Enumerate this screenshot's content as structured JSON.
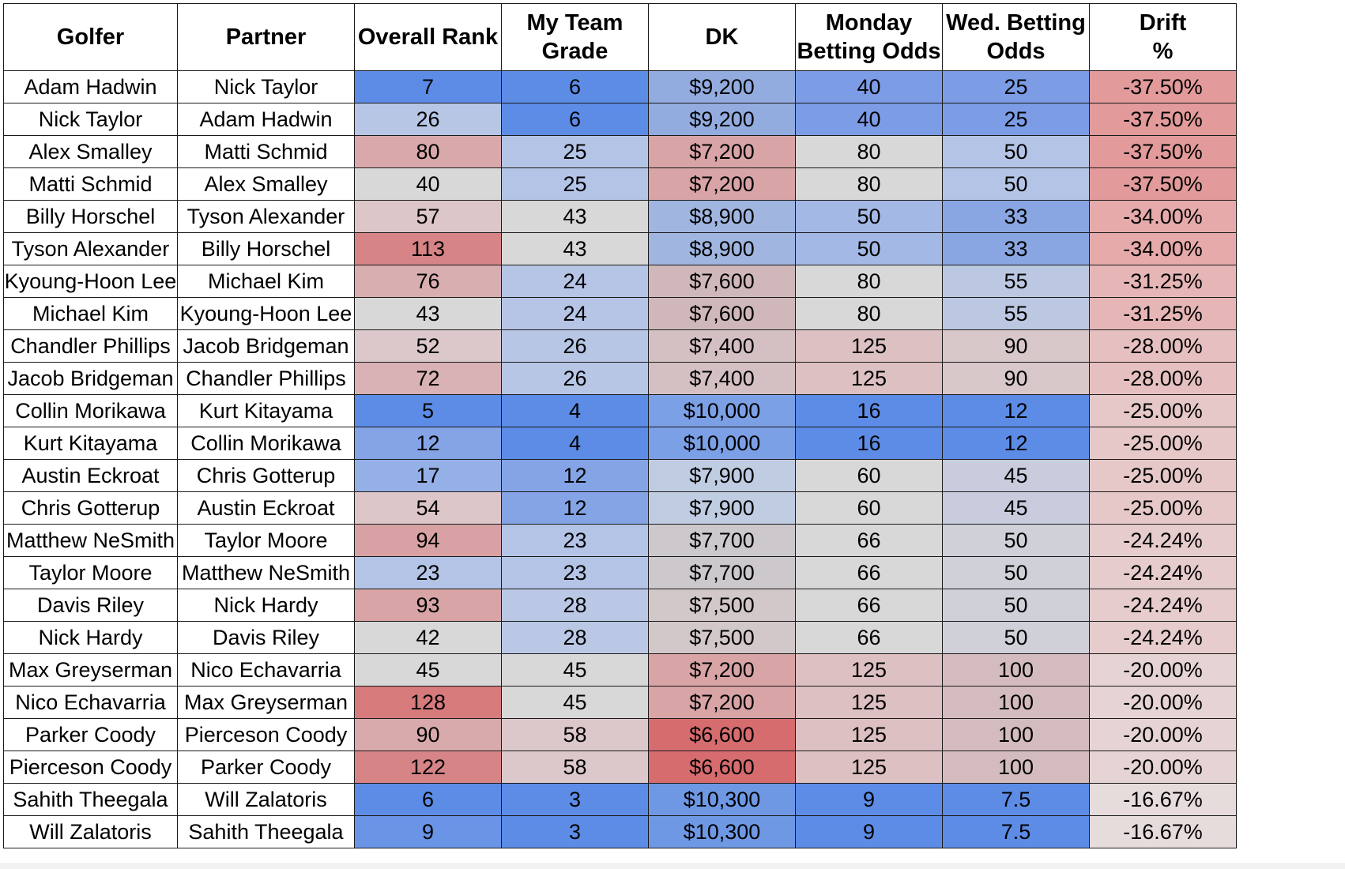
{
  "table": {
    "headers": [
      "Golfer",
      "Partner",
      "Overall Rank",
      "My Team\nGrade",
      "DK",
      "Monday\nBetting Odds",
      "Wed. Betting\nOdds",
      "Drift\n%"
    ],
    "rows": [
      [
        "Adam Hadwin",
        "Nick Taylor",
        "7",
        "6",
        "$9,200",
        "40",
        "25",
        "-37.50%"
      ],
      [
        "Nick Taylor",
        "Adam Hadwin",
        "26",
        "6",
        "$9,200",
        "40",
        "25",
        "-37.50%"
      ],
      [
        "Alex Smalley",
        "Matti Schmid",
        "80",
        "25",
        "$7,200",
        "80",
        "50",
        "-37.50%"
      ],
      [
        "Matti Schmid",
        "Alex Smalley",
        "40",
        "25",
        "$7,200",
        "80",
        "50",
        "-37.50%"
      ],
      [
        "Billy Horschel",
        "Tyson Alexander",
        "57",
        "43",
        "$8,900",
        "50",
        "33",
        "-34.00%"
      ],
      [
        "Tyson Alexander",
        "Billy Horschel",
        "113",
        "43",
        "$8,900",
        "50",
        "33",
        "-34.00%"
      ],
      [
        "Kyoung-Hoon Lee",
        "Michael Kim",
        "76",
        "24",
        "$7,600",
        "80",
        "55",
        "-31.25%"
      ],
      [
        "Michael Kim",
        "Kyoung-Hoon Lee",
        "43",
        "24",
        "$7,600",
        "80",
        "55",
        "-31.25%"
      ],
      [
        "Chandler Phillips",
        "Jacob Bridgeman",
        "52",
        "26",
        "$7,400",
        "125",
        "90",
        "-28.00%"
      ],
      [
        "Jacob Bridgeman",
        "Chandler Phillips",
        "72",
        "26",
        "$7,400",
        "125",
        "90",
        "-28.00%"
      ],
      [
        "Collin Morikawa",
        "Kurt Kitayama",
        "5",
        "4",
        "$10,000",
        "16",
        "12",
        "-25.00%"
      ],
      [
        "Kurt Kitayama",
        "Collin Morikawa",
        "12",
        "4",
        "$10,000",
        "16",
        "12",
        "-25.00%"
      ],
      [
        "Austin Eckroat",
        "Chris Gotterup",
        "17",
        "12",
        "$7,900",
        "60",
        "45",
        "-25.00%"
      ],
      [
        "Chris Gotterup",
        "Austin Eckroat",
        "54",
        "12",
        "$7,900",
        "60",
        "45",
        "-25.00%"
      ],
      [
        "Matthew NeSmith",
        "Taylor Moore",
        "94",
        "23",
        "$7,700",
        "66",
        "50",
        "-24.24%"
      ],
      [
        "Taylor Moore",
        "Matthew NeSmith",
        "23",
        "23",
        "$7,700",
        "66",
        "50",
        "-24.24%"
      ],
      [
        "Davis Riley",
        "Nick Hardy",
        "93",
        "28",
        "$7,500",
        "66",
        "50",
        "-24.24%"
      ],
      [
        "Nick Hardy",
        "Davis Riley",
        "42",
        "28",
        "$7,500",
        "66",
        "50",
        "-24.24%"
      ],
      [
        "Max Greyserman",
        "Nico Echavarria",
        "45",
        "45",
        "$7,200",
        "125",
        "100",
        "-20.00%"
      ],
      [
        "Nico Echavarria",
        "Max Greyserman",
        "128",
        "45",
        "$7,200",
        "125",
        "100",
        "-20.00%"
      ],
      [
        "Parker Coody",
        "Pierceson Coody",
        "90",
        "58",
        "$6,600",
        "125",
        "100",
        "-20.00%"
      ],
      [
        "Pierceson Coody",
        "Parker Coody",
        "122",
        "58",
        "$6,600",
        "125",
        "100",
        "-20.00%"
      ],
      [
        "Sahith Theegala",
        "Will Zalatoris",
        "6",
        "3",
        "$10,300",
        "9",
        "7.5",
        "-16.67%"
      ],
      [
        "Will Zalatoris",
        "Sahith Theegala",
        "9",
        "3",
        "$10,300",
        "9",
        "7.5",
        "-16.67%"
      ]
    ],
    "fill_colors": [
      [
        "#ffffff",
        "#ffffff",
        "#5c8ce6",
        "#5c8ce6",
        "#93ace0",
        "#7c9ce6",
        "#7c9ce6",
        "#e29a9a"
      ],
      [
        "#ffffff",
        "#ffffff",
        "#b8c6e6",
        "#5c8ce6",
        "#93ace0",
        "#7c9ce6",
        "#7c9ce6",
        "#e29a9a"
      ],
      [
        "#ffffff",
        "#ffffff",
        "#d8a8aa",
        "#b4c4e6",
        "#d8a4a6",
        "#d8d8d8",
        "#b4c4e6",
        "#e29a9a"
      ],
      [
        "#ffffff",
        "#ffffff",
        "#d8d8d8",
        "#b4c4e6",
        "#d8a4a6",
        "#d8d8d8",
        "#b4c4e6",
        "#e29a9a"
      ],
      [
        "#ffffff",
        "#ffffff",
        "#dcc6c8",
        "#d8d8d8",
        "#a0b6e0",
        "#a4b8e6",
        "#8aa6e2",
        "#e6aaaa"
      ],
      [
        "#ffffff",
        "#ffffff",
        "#d68486",
        "#d8d8d8",
        "#a0b6e0",
        "#a4b8e6",
        "#8aa6e2",
        "#e6aaaa"
      ],
      [
        "#ffffff",
        "#ffffff",
        "#d8aeb0",
        "#b6c4e6",
        "#d0b8ba",
        "#d8d8d8",
        "#bcc8e2",
        "#e6b6b6"
      ],
      [
        "#ffffff",
        "#ffffff",
        "#d8d8d8",
        "#b6c4e6",
        "#d0b8ba",
        "#d8d8d8",
        "#bcc8e2",
        "#e6b6b6"
      ],
      [
        "#ffffff",
        "#ffffff",
        "#dcc8ca",
        "#b8c6e6",
        "#d4c0c2",
        "#dcc0c2",
        "#d8c8ca",
        "#e6c0c0"
      ],
      [
        "#ffffff",
        "#ffffff",
        "#d8b2b4",
        "#b8c6e6",
        "#d4c0c2",
        "#dcc0c2",
        "#d8c8ca",
        "#e6c0c0"
      ],
      [
        "#ffffff",
        "#ffffff",
        "#5c8ce6",
        "#5c8ce6",
        "#7ca0e6",
        "#5c8ce6",
        "#5c8ce6",
        "#e6c8c8"
      ],
      [
        "#ffffff",
        "#ffffff",
        "#84a4e6",
        "#5c8ce6",
        "#7ca0e6",
        "#5c8ce6",
        "#5c8ce6",
        "#e6c8c8"
      ],
      [
        "#ffffff",
        "#ffffff",
        "#94b0e6",
        "#84a4e6",
        "#c0cce2",
        "#d8d8d8",
        "#c8ccdc",
        "#e6c8c8"
      ],
      [
        "#ffffff",
        "#ffffff",
        "#dcc6c8",
        "#84a4e6",
        "#c0cce2",
        "#d8d8d8",
        "#c8ccdc",
        "#e6c8c8"
      ],
      [
        "#ffffff",
        "#ffffff",
        "#d8a2a4",
        "#b4c4e6",
        "#ccc8cc",
        "#d8d8d8",
        "#d0d0d8",
        "#e6cccc"
      ],
      [
        "#ffffff",
        "#ffffff",
        "#b4c4e6",
        "#b4c4e6",
        "#ccc8cc",
        "#d8d8d8",
        "#d0d0d8",
        "#e6cccc"
      ],
      [
        "#ffffff",
        "#ffffff",
        "#d8a4a6",
        "#bac8e6",
        "#d2c8ca",
        "#d8d8d8",
        "#d0d0d8",
        "#e6cccc"
      ],
      [
        "#ffffff",
        "#ffffff",
        "#d8d8d8",
        "#bac8e6",
        "#d2c8ca",
        "#d8d8d8",
        "#d0d0d8",
        "#e6cccc"
      ],
      [
        "#ffffff",
        "#ffffff",
        "#d8d8d8",
        "#d8d8d8",
        "#d8a4a6",
        "#dcc0c2",
        "#d4bcbe",
        "#e6d4d4"
      ],
      [
        "#ffffff",
        "#ffffff",
        "#d67a7c",
        "#d8d8d8",
        "#d8a4a6",
        "#dcc0c2",
        "#d4bcbe",
        "#e6d4d4"
      ],
      [
        "#ffffff",
        "#ffffff",
        "#d8aaac",
        "#dcc8ca",
        "#d66c6e",
        "#dcc0c2",
        "#d4bcbe",
        "#e6d4d4"
      ],
      [
        "#ffffff",
        "#ffffff",
        "#d68486",
        "#dcc8ca",
        "#d66c6e",
        "#dcc0c2",
        "#d4bcbe",
        "#e6d4d4"
      ],
      [
        "#ffffff",
        "#ffffff",
        "#5c8ce6",
        "#5c8ce6",
        "#6e98e4",
        "#5c8ce6",
        "#5c8ce6",
        "#e6dcdc"
      ],
      [
        "#ffffff",
        "#ffffff",
        "#6a94e6",
        "#5c8ce6",
        "#6e98e4",
        "#5c8ce6",
        "#5c8ce6",
        "#e6dcdc"
      ]
    ]
  }
}
